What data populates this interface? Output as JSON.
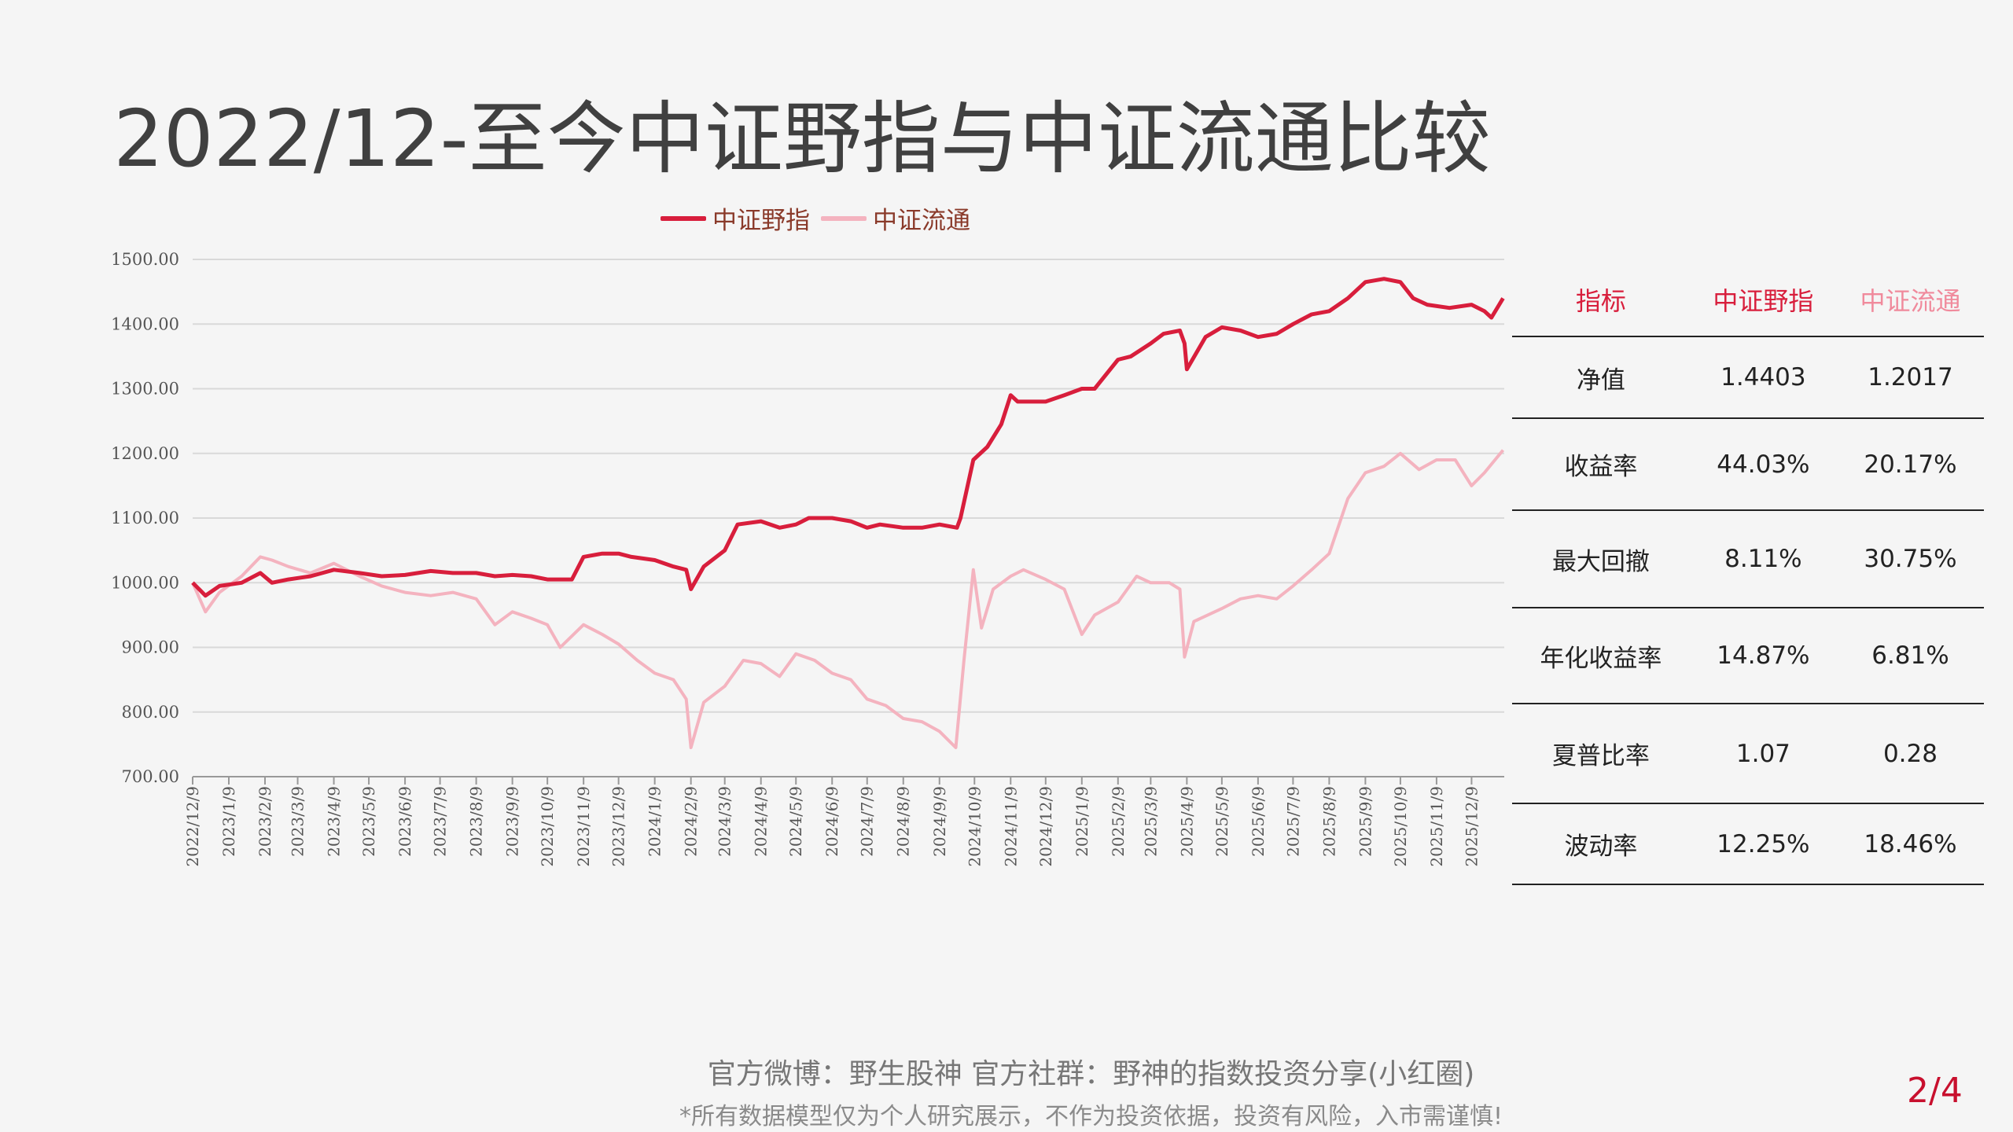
{
  "title": "2022/12-至今中证野指与中证流通比较",
  "colors": {
    "series1": "#d81e3c",
    "series2": "#f4b3bf",
    "header1": "#d81e3c",
    "header2": "#f08a9c",
    "pagenum": "#c8102e"
  },
  "table": {
    "headers": [
      "指标",
      "中证野指",
      "中证流通"
    ],
    "rows": [
      {
        "label": "净值",
        "v1": "1.4403",
        "v2": "1.2017"
      },
      {
        "label": "收益率",
        "v1": "44.03%",
        "v2": "20.17%"
      },
      {
        "label": "最大回撤",
        "v1": "8.11%",
        "v2": "30.75%"
      },
      {
        "label": "年化收益率",
        "v1": "14.87%",
        "v2": "6.81%"
      },
      {
        "label": "夏普比率",
        "v1": "1.07",
        "v2": "0.28"
      },
      {
        "label": "波动率",
        "v1": "12.25%",
        "v2": "18.46%"
      }
    ]
  },
  "footer": {
    "line1": "官方微博：野生股神  官方社群：野神的指数投资分享(小红圈)",
    "line2": "*所有数据模型仅为个人研究展示，不作为投资依据，投资有风险，入市需谨慎!",
    "page": "2/4"
  },
  "chart_data": {
    "type": "line",
    "ylim": [
      700,
      1500
    ],
    "yticks": [
      "700.00",
      "800.00",
      "900.00",
      "1000.00",
      "1100.00",
      "1200.00",
      "1300.00",
      "1400.00",
      "1500.00"
    ],
    "xticks": [
      "2022/12/9",
      "2023/1/9",
      "2023/2/9",
      "2023/3/9",
      "2023/4/9",
      "2023/5/9",
      "2023/6/9",
      "2023/7/9",
      "2023/8/9",
      "2023/9/9",
      "2023/10/9",
      "2023/11/9",
      "2023/12/9",
      "2024/1/9",
      "2024/2/9",
      "2024/3/9",
      "2024/4/9",
      "2024/5/9",
      "2024/6/9",
      "2024/7/9",
      "2024/8/9",
      "2024/9/9",
      "2024/10/9",
      "2024/11/9",
      "2024/12/9",
      "2025/1/9",
      "2025/2/9",
      "2025/3/9",
      "2025/4/9",
      "2025/5/9",
      "2025/6/9",
      "2025/7/9",
      "2025/8/9",
      "2025/9/9",
      "2025/10/9",
      "2025/11/9",
      "2025/12/9"
    ],
    "grid": true,
    "legend_position": "top",
    "series": [
      {
        "name": "中证野指",
        "dates": [
          "2022-12-09",
          "2022-12-20",
          "2023-01-01",
          "2023-01-20",
          "2023-02-05",
          "2023-02-15",
          "2023-03-01",
          "2023-03-20",
          "2023-04-09",
          "2023-05-01",
          "2023-05-20",
          "2023-06-09",
          "2023-07-01",
          "2023-07-20",
          "2023-08-09",
          "2023-08-25",
          "2023-09-09",
          "2023-09-25",
          "2023-10-09",
          "2023-10-30",
          "2023-11-09",
          "2023-11-25",
          "2023-12-09",
          "2023-12-20",
          "2024-01-09",
          "2024-01-25",
          "2024-02-05",
          "2024-02-09",
          "2024-02-20",
          "2024-03-09",
          "2024-03-20",
          "2024-04-09",
          "2024-04-25",
          "2024-05-09",
          "2024-05-20",
          "2024-06-09",
          "2024-06-25",
          "2024-07-09",
          "2024-07-20",
          "2024-08-09",
          "2024-08-25",
          "2024-09-09",
          "2024-09-24",
          "2024-09-27",
          "2024-10-08",
          "2024-10-20",
          "2024-11-01",
          "2024-11-09",
          "2024-11-15",
          "2024-12-09",
          "2024-12-25",
          "2025-01-09",
          "2025-01-20",
          "2025-02-09",
          "2025-02-20",
          "2025-03-09",
          "2025-03-20",
          "2025-04-03",
          "2025-04-07",
          "2025-04-09",
          "2025-04-25",
          "2025-05-09",
          "2025-05-25",
          "2025-06-09",
          "2025-06-25",
          "2025-07-09",
          "2025-07-25",
          "2025-08-09",
          "2025-08-25",
          "2025-09-09",
          "2025-09-25",
          "2025-10-09",
          "2025-10-20",
          "2025-11-01",
          "2025-11-20",
          "2025-12-09",
          "2025-12-20",
          "2025-12-26",
          "2026-01-05"
        ],
        "values": [
          1000,
          980,
          995,
          1000,
          1015,
          1000,
          1005,
          1010,
          1020,
          1015,
          1010,
          1012,
          1018,
          1015,
          1015,
          1010,
          1012,
          1010,
          1005,
          1005,
          1040,
          1045,
          1045,
          1040,
          1035,
          1025,
          1020,
          990,
          1025,
          1050,
          1090,
          1095,
          1085,
          1090,
          1100,
          1100,
          1095,
          1085,
          1090,
          1085,
          1085,
          1090,
          1085,
          1100,
          1190,
          1210,
          1245,
          1290,
          1280,
          1280,
          1290,
          1300,
          1300,
          1345,
          1350,
          1370,
          1385,
          1390,
          1370,
          1330,
          1380,
          1395,
          1390,
          1380,
          1385,
          1400,
          1415,
          1420,
          1440,
          1465,
          1470,
          1465,
          1440,
          1430,
          1425,
          1430,
          1420,
          1410,
          1440
        ]
      },
      {
        "name": "中证流通",
        "dates": [
          "2022-12-09",
          "2022-12-20",
          "2023-01-01",
          "2023-01-20",
          "2023-02-05",
          "2023-02-15",
          "2023-03-01",
          "2023-03-20",
          "2023-04-09",
          "2023-05-01",
          "2023-05-20",
          "2023-06-09",
          "2023-07-01",
          "2023-07-20",
          "2023-08-09",
          "2023-08-25",
          "2023-09-09",
          "2023-09-25",
          "2023-10-09",
          "2023-10-20",
          "2023-11-09",
          "2023-11-25",
          "2023-12-09",
          "2023-12-25",
          "2024-01-09",
          "2024-01-25",
          "2024-02-05",
          "2024-02-09",
          "2024-02-20",
          "2024-03-09",
          "2024-03-25",
          "2024-04-09",
          "2024-04-25",
          "2024-05-09",
          "2024-05-25",
          "2024-06-09",
          "2024-06-25",
          "2024-07-09",
          "2024-07-25",
          "2024-08-09",
          "2024-08-25",
          "2024-09-09",
          "2024-09-23",
          "2024-09-30",
          "2024-10-08",
          "2024-10-15",
          "2024-10-25",
          "2024-11-09",
          "2024-11-20",
          "2024-12-09",
          "2024-12-25",
          "2025-01-09",
          "2025-01-20",
          "2025-02-09",
          "2025-02-25",
          "2025-03-09",
          "2025-03-25",
          "2025-04-03",
          "2025-04-07",
          "2025-04-15",
          "2025-05-09",
          "2025-05-25",
          "2025-06-09",
          "2025-06-25",
          "2025-07-09",
          "2025-07-25",
          "2025-08-09",
          "2025-08-25",
          "2025-09-09",
          "2025-09-25",
          "2025-10-09",
          "2025-10-25",
          "2025-11-09",
          "2025-11-25",
          "2025-12-09",
          "2025-12-20",
          "2026-01-05"
        ],
        "values": [
          1000,
          955,
          985,
          1010,
          1040,
          1035,
          1025,
          1015,
          1030,
          1010,
          995,
          985,
          980,
          985,
          975,
          935,
          955,
          945,
          935,
          900,
          935,
          920,
          905,
          880,
          860,
          850,
          820,
          745,
          815,
          840,
          880,
          875,
          855,
          890,
          880,
          860,
          850,
          820,
          810,
          790,
          785,
          770,
          745,
          880,
          1020,
          930,
          990,
          1010,
          1020,
          1005,
          990,
          920,
          950,
          970,
          1010,
          1000,
          1000,
          990,
          885,
          940,
          960,
          975,
          980,
          975,
          995,
          1020,
          1045,
          1130,
          1170,
          1180,
          1200,
          1175,
          1190,
          1190,
          1150,
          1170,
          1205
        ]
      }
    ]
  }
}
